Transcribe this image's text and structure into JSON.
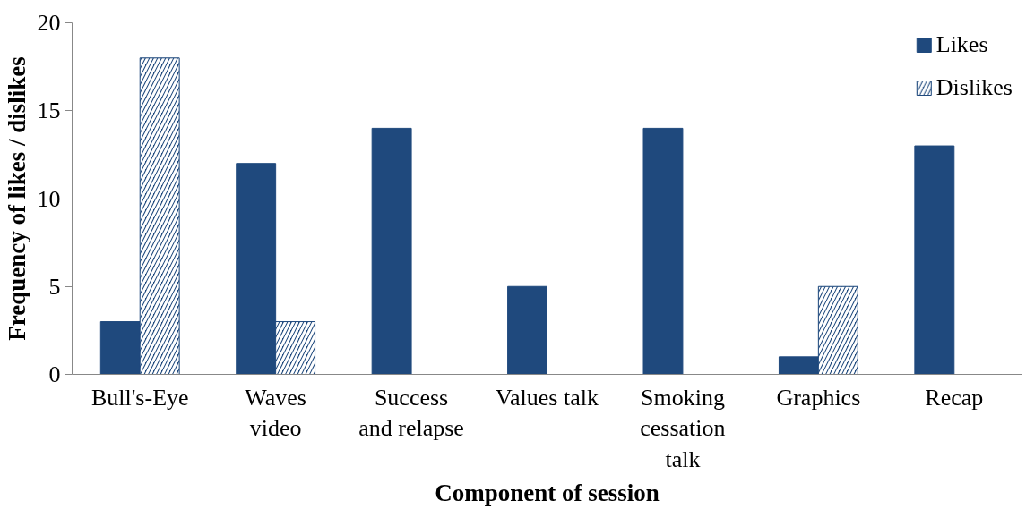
{
  "chart_data": {
    "type": "bar",
    "xlabel": "Component of session",
    "ylabel": "Frequency of likes / dislikes",
    "categories": [
      "Bull's-Eye",
      "Waves\nvideo",
      "Success\nand relapse",
      "Values talk",
      "Smoking\ncessation\ntalk",
      "Graphics",
      "Recap"
    ],
    "series": [
      {
        "name": "Likes",
        "color": "#1f497d",
        "values": [
          3,
          12,
          14,
          5,
          14,
          1,
          13
        ]
      },
      {
        "name": "Dislikes",
        "color": "#1f497d",
        "values": [
          18,
          3,
          0,
          0,
          0,
          5,
          0
        ]
      }
    ],
    "ylim": [
      0,
      20
    ],
    "yticks": [
      0,
      5,
      10,
      15,
      20
    ],
    "grid": false,
    "legend": "top right"
  }
}
